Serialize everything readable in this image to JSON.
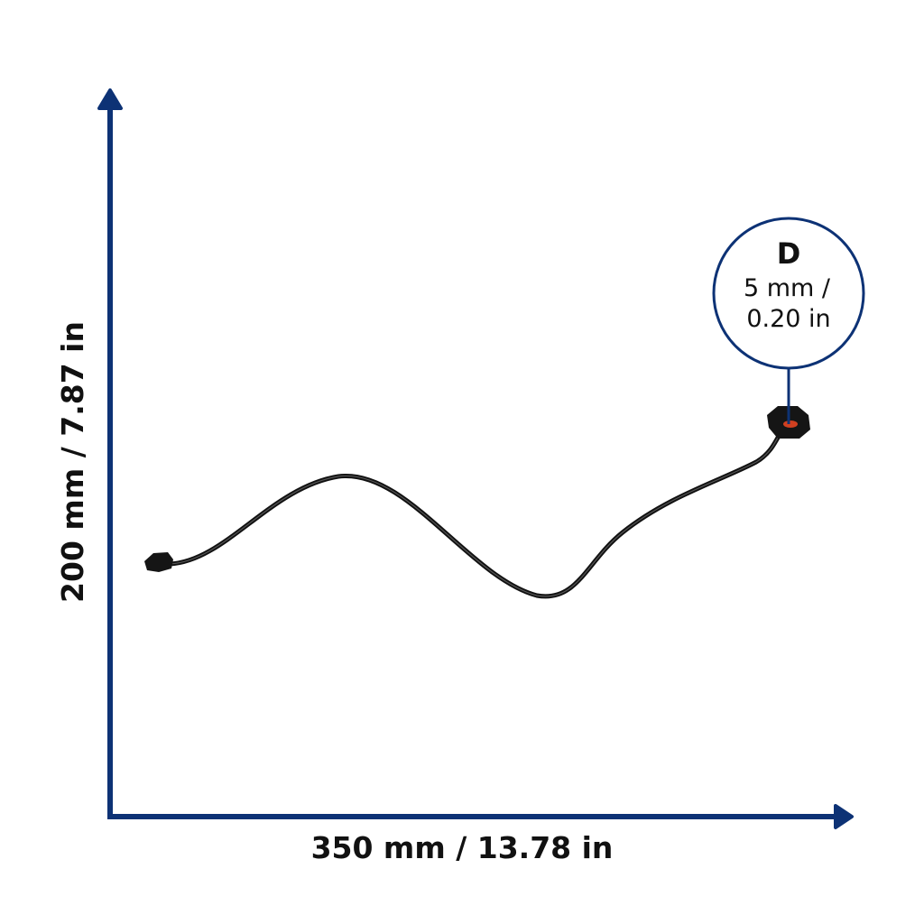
{
  "dimensions": {
    "height": "200 mm / 7.87 in",
    "width": "350 mm / 13.78 in"
  },
  "callout": {
    "label": "D",
    "lines": [
      "5 mm /",
      "0.20 in"
    ]
  }
}
